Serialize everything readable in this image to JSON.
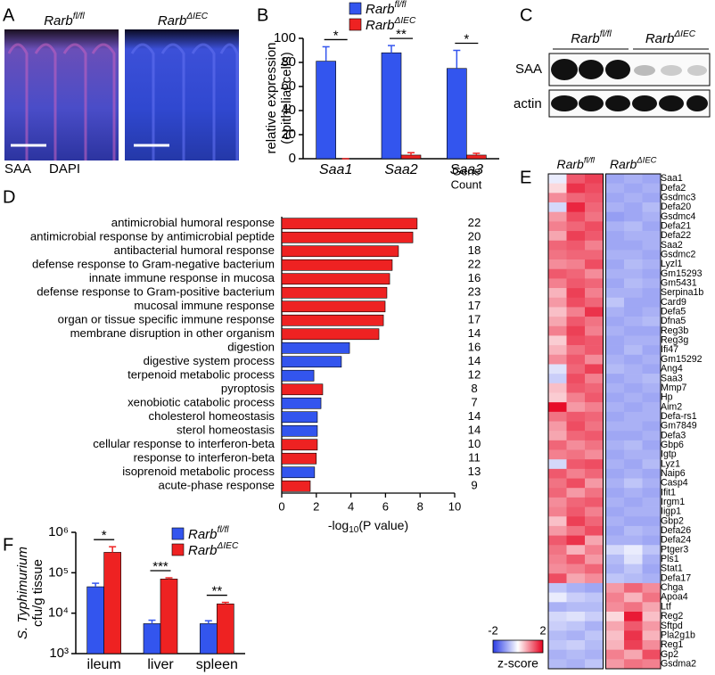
{
  "panel_letters": [
    "A",
    "B",
    "C",
    "D",
    "E",
    "F"
  ],
  "panel_a": {
    "genotypes": [
      {
        "name": "Rarb",
        "superscript": "fl/fl"
      },
      {
        "name": "Rarb",
        "superscript": "ΔIEC"
      }
    ],
    "stains": [
      "SAA",
      "DAPI"
    ]
  },
  "panel_c": {
    "genotypes": [
      {
        "name": "Rarb",
        "superscript": "fl/fl"
      },
      {
        "name": "Rarb",
        "superscript": "ΔIEC"
      }
    ],
    "rows": [
      "SAA",
      "actin"
    ]
  },
  "chart_data": [
    {
      "type": "bar",
      "y_label": [
        "relative expression",
        "(epithelial cells)"
      ],
      "categories": [
        "Saa1",
        "Saa2",
        "Saa3"
      ],
      "series": [
        {
          "name": "Rarb",
          "superscript": "fl/fl",
          "color": "#3355ee",
          "values": [
            81,
            88,
            75
          ],
          "errors": [
            12,
            6,
            15
          ]
        },
        {
          "name": "Rarb",
          "superscript": "ΔIEC",
          "color": "#ee2222",
          "values": [
            0,
            3,
            3
          ],
          "errors": [
            0,
            2,
            1.5
          ]
        }
      ],
      "significance": [
        "*",
        "**",
        "*"
      ],
      "ylim": [
        0,
        100
      ],
      "yticks": [
        0,
        20,
        40,
        60,
        80,
        100
      ],
      "log": false
    },
    {
      "type": "hbar",
      "categories": [
        "antimicrobial humoral response",
        "antimicrobial response by antimicrobial peptide",
        "antibacterial humoral response",
        "defense response to Gram-negative bacterium",
        "innate immune response in mucosa",
        "defense response to Gram-positive bacterium",
        "mucosal immune response",
        "organ or tissue specific immune response",
        "membrane disruption in other organism",
        "digestion",
        "digestive system process",
        "terpenoid metabolic process",
        "pyroptosis",
        "xenobiotic catabolic process",
        "cholesterol homeostasis",
        "sterol homeostasis",
        "cellular response to interferon-beta",
        "response to interferon-beta",
        "isoprenoid metabolic process",
        "acute-phase response"
      ],
      "values": [
        7.83,
        7.58,
        6.75,
        6.39,
        6.24,
        6.08,
        5.98,
        5.88,
        5.62,
        3.92,
        3.45,
        1.86,
        2.37,
        2.27,
        2.06,
        2.06,
        2.06,
        2.0,
        1.9,
        1.65
      ],
      "colors": [
        "#ee2222",
        "#ee2222",
        "#ee2222",
        "#ee2222",
        "#ee2222",
        "#ee2222",
        "#ee2222",
        "#ee2222",
        "#ee2222",
        "#3355ee",
        "#3355ee",
        "#3355ee",
        "#ee2222",
        "#3355ee",
        "#3355ee",
        "#3355ee",
        "#ee2222",
        "#ee2222",
        "#3355ee",
        "#ee2222"
      ],
      "gene_count_header": [
        "Gene",
        "Count"
      ],
      "gene_counts": [
        22,
        20,
        18,
        22,
        16,
        23,
        17,
        17,
        14,
        16,
        14,
        12,
        8,
        7,
        14,
        14,
        10,
        11,
        13,
        9
      ],
      "x_label": {
        "text": "-log",
        "subscript": "10",
        "suffix": "(P value)"
      },
      "xlim": [
        0,
        10
      ],
      "xticks": [
        0,
        2,
        4,
        6,
        8,
        10
      ]
    },
    {
      "type": "bar",
      "y_label": [
        "S. Typhimurium",
        "cfu/g tissue"
      ],
      "categories": [
        "ileum",
        "liver",
        "spleen"
      ],
      "series": [
        {
          "name": "Rarb",
          "superscript": "fl/fl",
          "color": "#3355ee",
          "values": [
            45000,
            5500,
            5500
          ],
          "errors": [
            10000,
            1200,
            1000
          ]
        },
        {
          "name": "Rarb",
          "superscript": "ΔIEC",
          "color": "#ee2222",
          "values": [
            320000,
            70000,
            17000
          ],
          "errors": [
            120000,
            5000,
            1500
          ]
        }
      ],
      "significance": [
        "*",
        "***",
        "**"
      ],
      "ylim": [
        1000,
        1000000
      ],
      "yticks": [
        {
          "value": 1000,
          "label": "10³"
        },
        {
          "value": 10000,
          "label": "10⁴"
        },
        {
          "value": 100000,
          "label": "10⁵"
        },
        {
          "value": 1000000,
          "label": "10⁶"
        }
      ],
      "log": true
    },
    {
      "type": "heatmap",
      "groups": [
        {
          "name": "Rarb",
          "superscript": "fl/fl"
        },
        {
          "name": "Rarb",
          "superscript": "ΔIEC"
        }
      ],
      "rows": [
        "Saa1",
        "Defa2",
        "Gsdmc3",
        "Defa20",
        "Gsdmc4",
        "Defa21",
        "Defa22",
        "Saa2",
        "Gsdmc2",
        "Lyzl1",
        "Gm15293",
        "Gm5431",
        "Serpina1b",
        "Card9",
        "Defa5",
        "Dfna5",
        "Reg3b",
        "Reg3g",
        "Ifi47",
        "Gm15292",
        "Ang4",
        "Saa3",
        "Mmp7",
        "Hp",
        "Aim2",
        "Defa-rs1",
        "Gm7849",
        "Defa3",
        "Gbp6",
        "Igtp",
        "Lyz1",
        "Naip6",
        "Casp4",
        "Ifit1",
        "Irgm1",
        "Iigp1",
        "Gbp2",
        "Defa26",
        "Defa24",
        "Ptger3",
        "Pls1",
        "Stat1",
        "Defa17",
        "Chga",
        "Apoa4",
        "Ltf",
        "Reg2",
        "Sftpd",
        "Pla2g1b",
        "Reg1",
        "Gp2",
        "Gsdma2"
      ],
      "values": [
        [
          -0.2,
          1.3,
          1.5,
          -0.9,
          -0.8,
          -0.9
        ],
        [
          0.3,
          1.6,
          1.4,
          -0.8,
          -0.9,
          -0.8
        ],
        [
          0.9,
          1.2,
          1.3,
          -0.9,
          -0.8,
          -0.9
        ],
        [
          -0.4,
          1.7,
          1.2,
          -0.8,
          -0.9,
          -0.7
        ],
        [
          0.8,
          1.4,
          1.1,
          -1.0,
          -0.9,
          -0.8
        ],
        [
          1.0,
          1.2,
          1.4,
          -0.8,
          -0.7,
          -0.9
        ],
        [
          0.7,
          1.5,
          1.3,
          -0.9,
          -0.8,
          -0.8
        ],
        [
          1.2,
          1.3,
          1.0,
          -0.9,
          -0.9,
          -0.8
        ],
        [
          1.1,
          1.2,
          1.2,
          -0.8,
          -0.8,
          -0.9
        ],
        [
          0.9,
          1.0,
          1.4,
          -0.9,
          -0.7,
          -0.8
        ],
        [
          1.3,
          1.2,
          0.9,
          -0.8,
          -0.8,
          -0.9
        ],
        [
          1.0,
          1.3,
          1.2,
          -0.9,
          -0.7,
          -0.8
        ],
        [
          0.6,
          1.5,
          1.0,
          -0.8,
          -0.8,
          -0.9
        ],
        [
          0.8,
          1.4,
          1.2,
          -0.6,
          -0.9,
          -0.9
        ],
        [
          0.5,
          1.0,
          1.6,
          -0.8,
          -0.9,
          -0.8
        ],
        [
          0.7,
          1.3,
          1.1,
          -0.9,
          -0.8,
          -0.7
        ],
        [
          1.0,
          1.5,
          1.0,
          -0.8,
          -0.9,
          -0.9
        ],
        [
          0.4,
          1.4,
          1.3,
          -0.9,
          -0.8,
          -0.8
        ],
        [
          0.6,
          1.1,
          1.3,
          -0.9,
          -0.7,
          -0.9
        ],
        [
          0.9,
          1.3,
          0.9,
          -0.8,
          -0.9,
          -0.8
        ],
        [
          -0.3,
          1.2,
          1.5,
          -0.7,
          -0.8,
          -0.9
        ],
        [
          -0.5,
          1.4,
          1.0,
          -0.9,
          -0.8,
          -0.7
        ],
        [
          0.5,
          1.3,
          1.2,
          -0.8,
          -0.9,
          -0.8
        ],
        [
          0.4,
          1.0,
          1.3,
          -0.9,
          -0.8,
          -0.9
        ],
        [
          1.9,
          0.8,
          1.0,
          -0.8,
          -0.9,
          -0.8
        ],
        [
          1.1,
          1.3,
          1.2,
          -0.9,
          -0.8,
          -0.8
        ],
        [
          0.8,
          1.4,
          1.1,
          -0.8,
          -0.8,
          -0.9
        ],
        [
          0.7,
          1.2,
          1.3,
          -0.9,
          -0.9,
          -0.8
        ],
        [
          1.2,
          0.9,
          1.1,
          -0.8,
          -0.7,
          -0.9
        ],
        [
          1.0,
          1.1,
          0.9,
          -0.9,
          -0.8,
          -0.8
        ],
        [
          -0.4,
          1.3,
          1.4,
          -0.8,
          -0.9,
          -0.7
        ],
        [
          1.3,
          1.0,
          1.2,
          -0.9,
          -0.8,
          -0.9
        ],
        [
          1.1,
          1.4,
          0.8,
          -0.8,
          -0.6,
          -0.8
        ],
        [
          1.2,
          0.8,
          1.1,
          -0.9,
          -0.8,
          -0.9
        ],
        [
          0.9,
          1.2,
          1.3,
          -0.8,
          -0.9,
          -0.8
        ],
        [
          1.0,
          1.3,
          1.0,
          -0.9,
          -0.8,
          -0.8
        ],
        [
          0.5,
          1.5,
          1.2,
          -0.8,
          -0.9,
          -0.9
        ],
        [
          0.8,
          1.1,
          1.4,
          -0.9,
          -0.7,
          -0.8
        ],
        [
          1.3,
          1.6,
          0.7,
          -0.8,
          -0.8,
          -0.9
        ],
        [
          1.1,
          0.6,
          1.0,
          -0.4,
          -0.2,
          -0.6
        ],
        [
          1.0,
          1.3,
          0.8,
          -0.7,
          -0.3,
          -0.8
        ],
        [
          0.9,
          1.0,
          1.2,
          -0.8,
          -0.6,
          -0.9
        ],
        [
          1.4,
          0.7,
          0.9,
          -0.6,
          -0.7,
          -0.8
        ],
        [
          -0.6,
          -0.8,
          -0.9,
          0.8,
          1.2,
          0.9
        ],
        [
          -0.2,
          -0.5,
          -0.6,
          1.0,
          0.6,
          1.1
        ],
        [
          -0.8,
          -0.7,
          -0.7,
          0.9,
          1.1,
          0.7
        ],
        [
          -0.4,
          -0.3,
          -0.5,
          0.3,
          1.8,
          0.5
        ],
        [
          -0.5,
          -0.6,
          -0.8,
          0.7,
          1.3,
          0.8
        ],
        [
          -0.7,
          -0.8,
          -0.6,
          0.5,
          1.6,
          0.6
        ],
        [
          -0.6,
          -0.5,
          -0.7,
          0.6,
          1.5,
          0.9
        ],
        [
          -0.8,
          -0.7,
          -0.8,
          1.0,
          0.7,
          1.4
        ],
        [
          -0.7,
          -0.8,
          -0.6,
          0.8,
          1.1,
          1.0
        ]
      ],
      "zlim": [
        -2,
        2
      ],
      "zticks": [
        -2,
        2
      ],
      "colorbar_label": "z-score",
      "low_color": "#2a3ce6",
      "high_color": "#e6001e"
    }
  ]
}
